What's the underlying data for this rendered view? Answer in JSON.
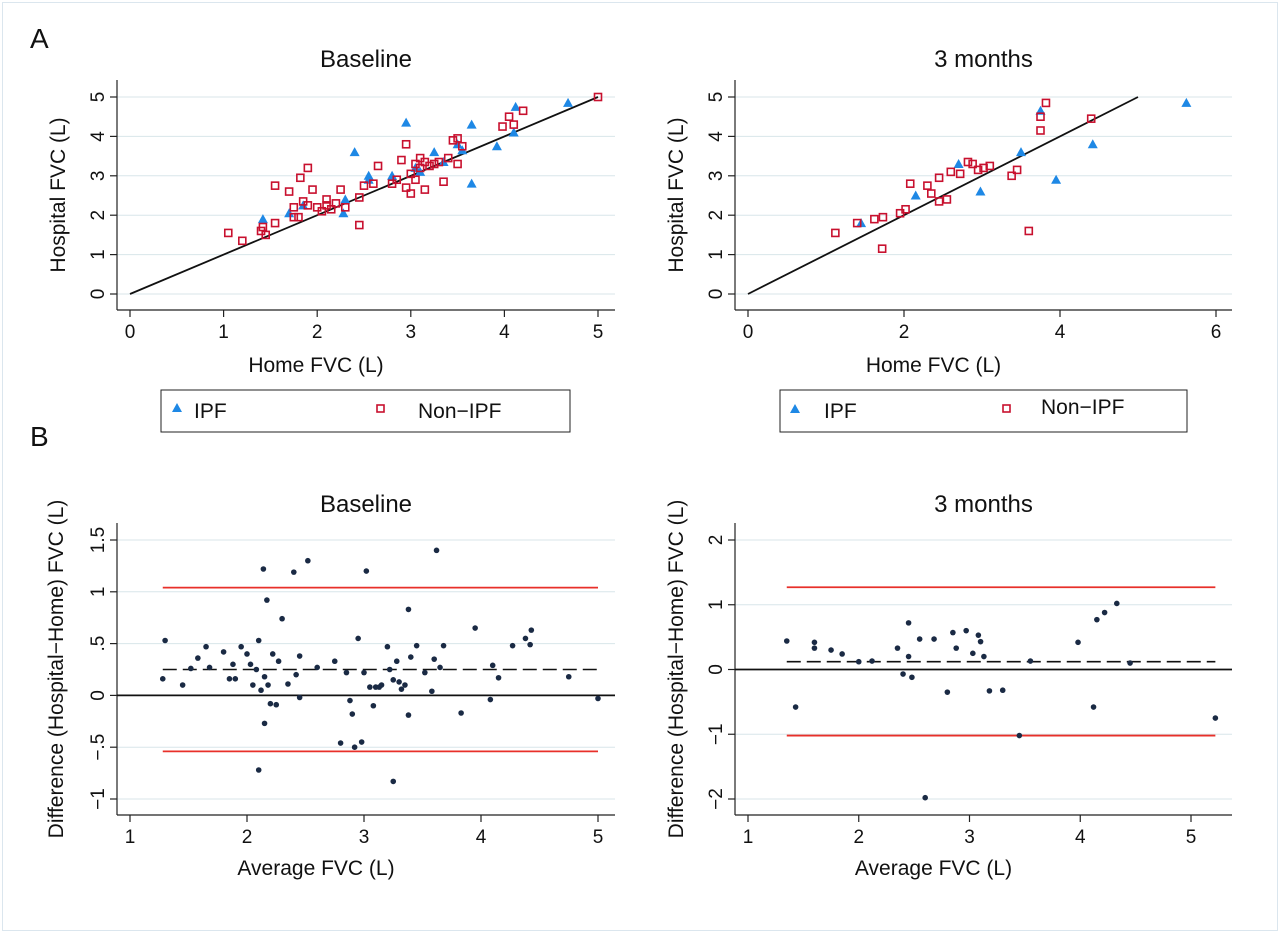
{
  "panel_letters": {
    "a": "A",
    "b": "B"
  },
  "legend": {
    "ipf": "IPF",
    "non_ipf": "Non−IPF"
  },
  "colors": {
    "ipf": "#1e88e5",
    "non_ipf": "#c8102e",
    "limit_line": "#e8302a",
    "grid": "#d8e6ea",
    "points": "#1a2a44"
  },
  "chart_data": [
    {
      "id": "scatter-baseline",
      "type": "scatter",
      "title": "Baseline",
      "xlabel": "Home FVC (L)",
      "ylabel": "Hospital FVC (L)",
      "xlim": [
        0,
        5
      ],
      "ylim": [
        0,
        5
      ],
      "xticks": [
        0,
        1,
        2,
        3,
        4,
        5
      ],
      "xtick_labels": [
        "0",
        "1",
        "2",
        "3",
        "4",
        "5"
      ],
      "yticks": [
        0,
        1,
        2,
        3,
        4,
        5
      ],
      "ytick_labels": [
        "0",
        "1",
        "2",
        "3",
        "4",
        "5"
      ],
      "grid": "horizontal",
      "reference_line": {
        "label": "line of identity",
        "from": [
          0,
          0
        ],
        "to": [
          5,
          5
        ]
      },
      "series": [
        {
          "name": "IPF",
          "marker": "triangle",
          "points": [
            [
              1.42,
              1.9
            ],
            [
              1.7,
              2.05
            ],
            [
              1.85,
              2.25
            ],
            [
              2.28,
              2.05
            ],
            [
              2.3,
              2.4
            ],
            [
              2.4,
              3.6
            ],
            [
              2.55,
              3.0
            ],
            [
              2.55,
              2.9
            ],
            [
              2.8,
              3.0
            ],
            [
              2.95,
              4.35
            ],
            [
              3.05,
              3.2
            ],
            [
              3.1,
              3.1
            ],
            [
              3.25,
              3.6
            ],
            [
              3.35,
              3.35
            ],
            [
              3.5,
              3.8
            ],
            [
              3.55,
              3.65
            ],
            [
              3.65,
              4.3
            ],
            [
              3.65,
              2.8
            ],
            [
              3.92,
              3.75
            ],
            [
              4.1,
              4.1
            ],
            [
              4.12,
              4.75
            ],
            [
              4.68,
              4.85
            ]
          ]
        },
        {
          "name": "Non−IPF",
          "marker": "square",
          "points": [
            [
              1.05,
              1.55
            ],
            [
              1.2,
              1.35
            ],
            [
              1.4,
              1.6
            ],
            [
              1.42,
              1.7
            ],
            [
              1.45,
              1.5
            ],
            [
              1.55,
              2.75
            ],
            [
              1.55,
              1.8
            ],
            [
              1.7,
              2.6
            ],
            [
              1.75,
              2.2
            ],
            [
              1.75,
              1.95
            ],
            [
              1.8,
              1.95
            ],
            [
              1.82,
              2.95
            ],
            [
              1.85,
              2.35
            ],
            [
              1.9,
              3.2
            ],
            [
              1.9,
              2.25
            ],
            [
              1.95,
              2.65
            ],
            [
              2.0,
              2.2
            ],
            [
              2.05,
              2.1
            ],
            [
              2.1,
              2.25
            ],
            [
              2.1,
              2.4
            ],
            [
              2.15,
              2.15
            ],
            [
              2.2,
              2.3
            ],
            [
              2.25,
              2.65
            ],
            [
              2.3,
              2.2
            ],
            [
              2.45,
              2.45
            ],
            [
              2.45,
              1.75
            ],
            [
              2.5,
              2.75
            ],
            [
              2.6,
              2.8
            ],
            [
              2.65,
              3.25
            ],
            [
              2.8,
              2.8
            ],
            [
              2.85,
              2.9
            ],
            [
              2.9,
              3.4
            ],
            [
              2.95,
              3.8
            ],
            [
              2.95,
              2.7
            ],
            [
              3.0,
              2.55
            ],
            [
              3.0,
              3.05
            ],
            [
              3.05,
              2.9
            ],
            [
              3.05,
              3.3
            ],
            [
              3.1,
              3.2
            ],
            [
              3.1,
              3.45
            ],
            [
              3.15,
              2.65
            ],
            [
              3.15,
              3.35
            ],
            [
              3.2,
              3.25
            ],
            [
              3.25,
              3.3
            ],
            [
              3.3,
              3.35
            ],
            [
              3.35,
              2.85
            ],
            [
              3.4,
              3.45
            ],
            [
              3.45,
              3.9
            ],
            [
              3.5,
              3.3
            ],
            [
              3.5,
              3.95
            ],
            [
              3.55,
              3.75
            ],
            [
              3.98,
              4.25
            ],
            [
              4.05,
              4.5
            ],
            [
              4.1,
              4.3
            ],
            [
              4.2,
              4.65
            ],
            [
              5.0,
              5.0
            ]
          ]
        }
      ]
    },
    {
      "id": "scatter-3months",
      "type": "scatter",
      "title": "3 months",
      "xlabel": "Home FVC (L)",
      "ylabel": "Hospital FVC (L)",
      "xlim": [
        0,
        6
      ],
      "ylim": [
        0,
        5
      ],
      "xticks": [
        0,
        2,
        4,
        6
      ],
      "xtick_labels": [
        "0",
        "2",
        "4",
        "6"
      ],
      "yticks": [
        0,
        1,
        2,
        3,
        4,
        5
      ],
      "ytick_labels": [
        "0",
        "1",
        "2",
        "3",
        "4",
        "5"
      ],
      "grid": "horizontal",
      "reference_line": {
        "label": "line of identity",
        "from": [
          0,
          0
        ],
        "to": [
          5,
          5
        ]
      },
      "series": [
        {
          "name": "IPF",
          "marker": "triangle",
          "points": [
            [
              1.45,
              1.8
            ],
            [
              2.15,
              2.5
            ],
            [
              2.7,
              3.3
            ],
            [
              2.98,
              2.6
            ],
            [
              3.5,
              3.6
            ],
            [
              3.75,
              4.65
            ],
            [
              3.95,
              2.9
            ],
            [
              4.42,
              3.8
            ],
            [
              5.62,
              4.85
            ]
          ]
        },
        {
          "name": "Non−IPF",
          "marker": "square",
          "points": [
            [
              1.12,
              1.55
            ],
            [
              1.4,
              1.8
            ],
            [
              1.62,
              1.9
            ],
            [
              1.72,
              1.15
            ],
            [
              1.73,
              1.95
            ],
            [
              1.95,
              2.05
            ],
            [
              2.02,
              2.15
            ],
            [
              2.08,
              2.8
            ],
            [
              2.3,
              2.75
            ],
            [
              2.35,
              2.55
            ],
            [
              2.45,
              2.35
            ],
            [
              2.45,
              2.95
            ],
            [
              2.55,
              2.4
            ],
            [
              2.6,
              3.1
            ],
            [
              2.72,
              3.05
            ],
            [
              2.82,
              3.35
            ],
            [
              2.88,
              3.3
            ],
            [
              2.95,
              3.15
            ],
            [
              3.02,
              3.2
            ],
            [
              3.1,
              3.25
            ],
            [
              3.38,
              3.0
            ],
            [
              3.45,
              3.15
            ],
            [
              3.6,
              1.6
            ],
            [
              3.75,
              4.15
            ],
            [
              3.75,
              4.5
            ],
            [
              3.82,
              4.85
            ],
            [
              4.4,
              4.45
            ]
          ]
        }
      ]
    },
    {
      "id": "ba-baseline",
      "type": "scatter",
      "title": "Baseline",
      "xlabel": "Average FVC (L)",
      "ylabel": "Difference (Hospital−Home) FVC (L)",
      "xlim": [
        0.9,
        5.12
      ],
      "ylim": [
        -1.1,
        1.6
      ],
      "xticks": [
        1,
        2,
        3,
        4,
        5
      ],
      "xtick_labels": [
        "1",
        "2",
        "3",
        "4",
        "5"
      ],
      "yticks": [
        -1,
        -0.5,
        0,
        0.5,
        1,
        1.5
      ],
      "ytick_labels": [
        "−1",
        "−.5",
        "0",
        ".5",
        "1",
        "1.5"
      ],
      "grid": "horizontal",
      "zero_line": 0,
      "mean_difference": 0.25,
      "limits_of_agreement": [
        -0.54,
        1.04
      ],
      "hline_range": [
        1.28,
        5.0
      ],
      "series": [
        {
          "name": "",
          "marker": "dot",
          "points": [
            [
              1.28,
              0.16
            ],
            [
              1.3,
              0.53
            ],
            [
              1.45,
              0.1
            ],
            [
              1.52,
              0.26
            ],
            [
              1.58,
              0.36
            ],
            [
              1.65,
              0.47
            ],
            [
              1.68,
              0.27
            ],
            [
              1.8,
              0.42
            ],
            [
              1.85,
              0.16
            ],
            [
              1.88,
              0.3
            ],
            [
              1.9,
              0.16
            ],
            [
              1.95,
              0.47
            ],
            [
              2.0,
              0.4
            ],
            [
              2.03,
              0.3
            ],
            [
              2.05,
              0.1
            ],
            [
              2.08,
              0.25
            ],
            [
              2.1,
              0.53
            ],
            [
              2.1,
              -0.72
            ],
            [
              2.12,
              0.05
            ],
            [
              2.14,
              1.22
            ],
            [
              2.15,
              -0.27
            ],
            [
              2.15,
              0.18
            ],
            [
              2.17,
              0.92
            ],
            [
              2.18,
              0.1
            ],
            [
              2.2,
              -0.08
            ],
            [
              2.22,
              0.4
            ],
            [
              2.25,
              -0.09
            ],
            [
              2.27,
              0.33
            ],
            [
              2.3,
              0.74
            ],
            [
              2.35,
              0.11
            ],
            [
              2.4,
              1.19
            ],
            [
              2.42,
              0.2
            ],
            [
              2.45,
              0.38
            ],
            [
              2.45,
              -0.02
            ],
            [
              2.52,
              1.3
            ],
            [
              2.6,
              0.27
            ],
            [
              2.75,
              0.33
            ],
            [
              2.8,
              -0.46
            ],
            [
              2.85,
              0.22
            ],
            [
              2.88,
              -0.05
            ],
            [
              2.9,
              -0.18
            ],
            [
              2.92,
              -0.5
            ],
            [
              2.95,
              0.55
            ],
            [
              2.98,
              -0.45
            ],
            [
              3.0,
              0.22
            ],
            [
              3.02,
              1.2
            ],
            [
              3.05,
              0.08
            ],
            [
              3.08,
              -0.1
            ],
            [
              3.1,
              0.08
            ],
            [
              3.13,
              0.08
            ],
            [
              3.15,
              0.1
            ],
            [
              3.2,
              0.47
            ],
            [
              3.22,
              0.25
            ],
            [
              3.25,
              0.15
            ],
            [
              3.25,
              -0.83
            ],
            [
              3.28,
              0.33
            ],
            [
              3.3,
              0.13
            ],
            [
              3.32,
              0.06
            ],
            [
              3.35,
              0.1
            ],
            [
              3.38,
              0.83
            ],
            [
              3.38,
              -0.19
            ],
            [
              3.4,
              0.37
            ],
            [
              3.45,
              0.48
            ],
            [
              3.52,
              0.22
            ],
            [
              3.58,
              0.04
            ],
            [
              3.6,
              0.35
            ],
            [
              3.62,
              1.4
            ],
            [
              3.65,
              0.27
            ],
            [
              3.68,
              0.48
            ],
            [
              3.83,
              -0.17
            ],
            [
              3.95,
              0.65
            ],
            [
              4.08,
              -0.04
            ],
            [
              4.1,
              0.29
            ],
            [
              4.15,
              0.17
            ],
            [
              4.27,
              0.48
            ],
            [
              4.38,
              0.55
            ],
            [
              4.42,
              0.49
            ],
            [
              4.43,
              0.63
            ],
            [
              4.75,
              0.18
            ],
            [
              5.0,
              -0.03
            ]
          ]
        }
      ]
    },
    {
      "id": "ba-3months",
      "type": "scatter",
      "title": "3 months",
      "xlabel": "Average FVC (L)",
      "ylabel": "Difference (Hospital−Home) FVC (L)",
      "xlim": [
        0.95,
        5.38
      ],
      "ylim": [
        -2.2,
        2.2
      ],
      "xticks": [
        1,
        2,
        3,
        4,
        5
      ],
      "xtick_labels": [
        "1",
        "2",
        "3",
        "4",
        "5"
      ],
      "yticks": [
        -2,
        -1,
        0,
        1,
        2
      ],
      "ytick_labels": [
        "−2",
        "−1",
        "0",
        "1",
        "2"
      ],
      "grid": "horizontal",
      "zero_line": 0,
      "mean_difference": 0.12,
      "limits_of_agreement": [
        -1.02,
        1.27
      ],
      "hline_range": [
        1.35,
        5.22
      ],
      "series": [
        {
          "name": "",
          "marker": "dot",
          "points": [
            [
              1.35,
              0.44
            ],
            [
              1.43,
              -0.58
            ],
            [
              1.6,
              0.42
            ],
            [
              1.6,
              0.33
            ],
            [
              1.75,
              0.3
            ],
            [
              1.85,
              0.24
            ],
            [
              2.0,
              0.12
            ],
            [
              2.12,
              0.13
            ],
            [
              2.35,
              0.33
            ],
            [
              2.4,
              -0.07
            ],
            [
              2.45,
              0.72
            ],
            [
              2.45,
              0.2
            ],
            [
              2.48,
              -0.12
            ],
            [
              2.55,
              0.47
            ],
            [
              2.6,
              -1.98
            ],
            [
              2.68,
              0.47
            ],
            [
              2.8,
              -0.35
            ],
            [
              2.85,
              0.57
            ],
            [
              2.88,
              0.33
            ],
            [
              2.97,
              0.6
            ],
            [
              3.03,
              0.25
            ],
            [
              3.08,
              0.53
            ],
            [
              3.1,
              0.43
            ],
            [
              3.13,
              0.2
            ],
            [
              3.18,
              -0.33
            ],
            [
              3.3,
              -0.32
            ],
            [
              3.45,
              -1.02
            ],
            [
              3.55,
              0.13
            ],
            [
              3.98,
              0.42
            ],
            [
              4.12,
              -0.58
            ],
            [
              4.15,
              0.77
            ],
            [
              4.22,
              0.88
            ],
            [
              4.33,
              1.02
            ],
            [
              4.45,
              0.1
            ],
            [
              5.22,
              -0.75
            ]
          ]
        }
      ]
    }
  ]
}
